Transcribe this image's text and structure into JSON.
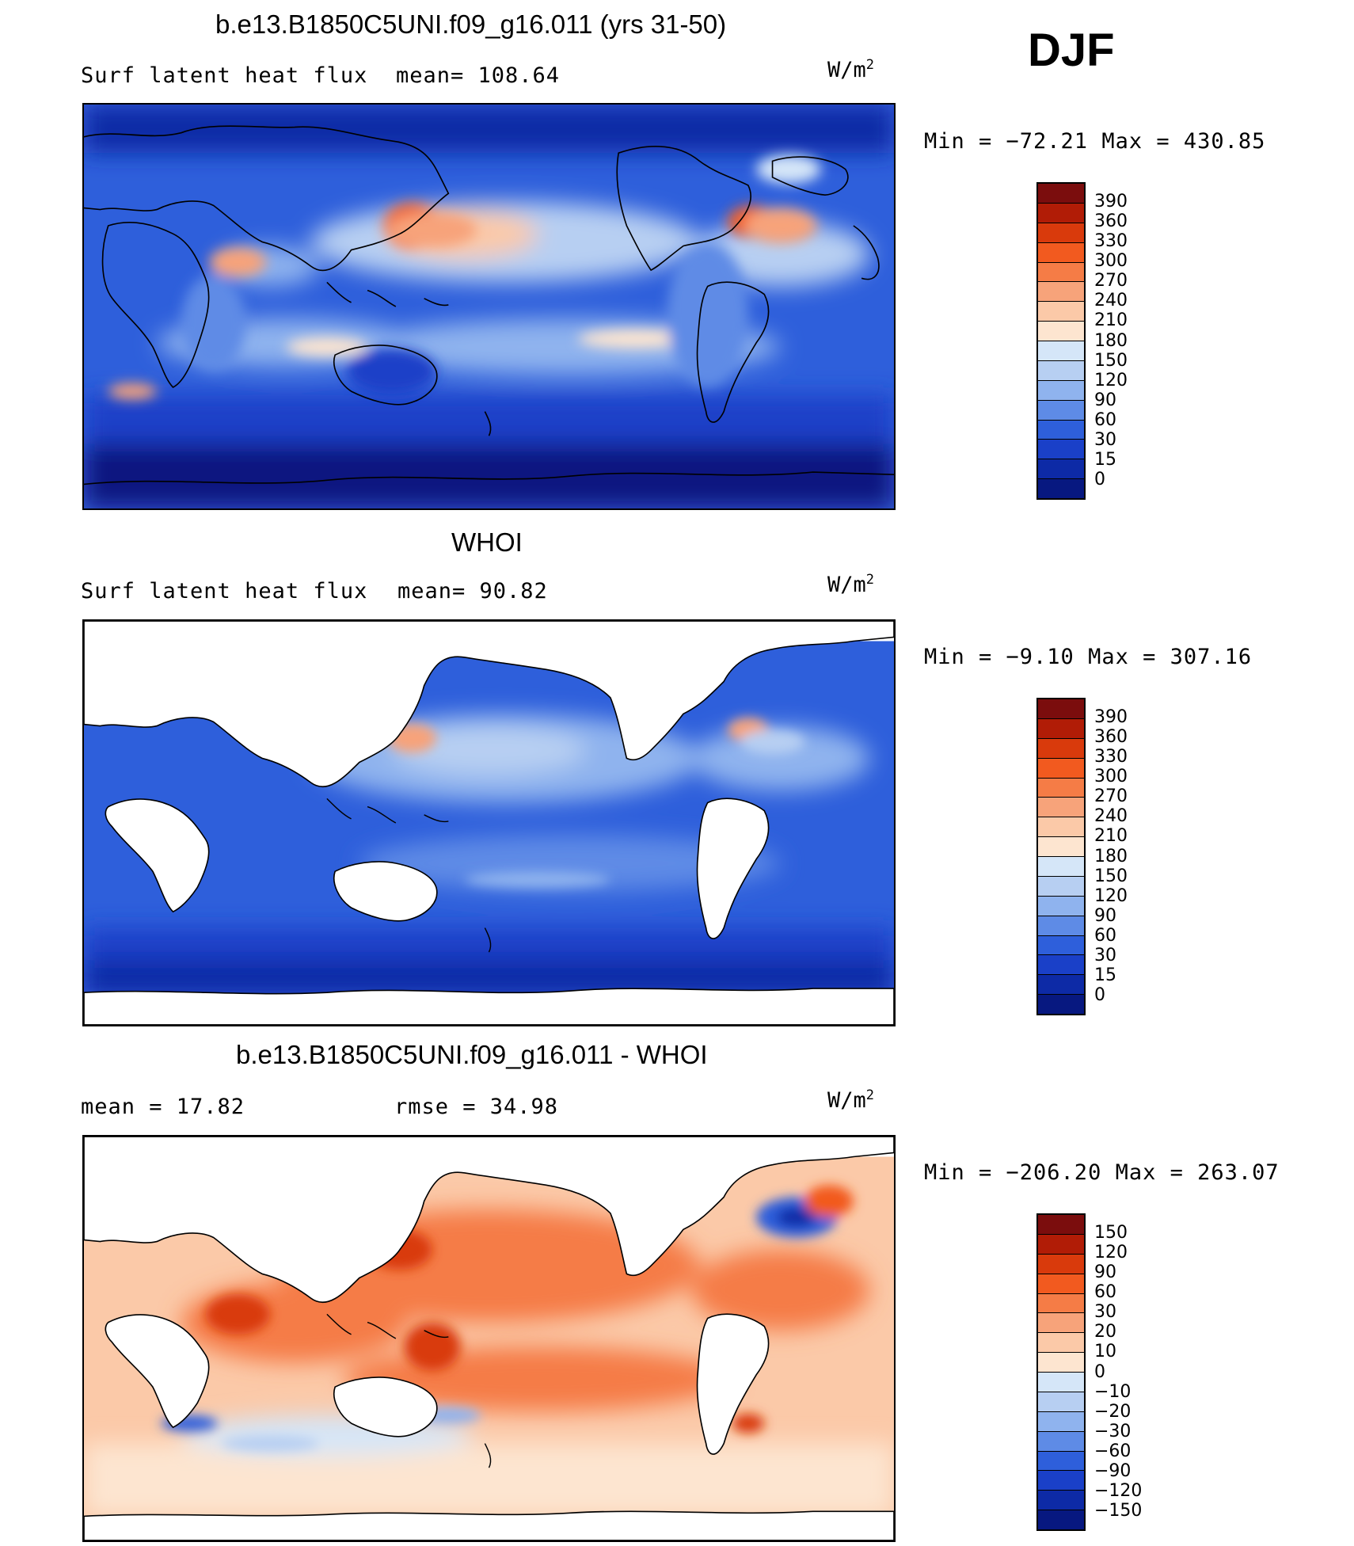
{
  "season": "DJF",
  "panels": [
    {
      "title": "b.e13.B1850C5UNI.f09_g16.011 (yrs 31-50)",
      "left_label": "Surf latent heat flux",
      "mid_label": "mean=  108.64",
      "units_base": "W/m",
      "units_exp": "2",
      "minmax": "Min = −72.21 Max = 430.85",
      "colorbar": {
        "labels": [
          "390",
          "360",
          "330",
          "300",
          "270",
          "240",
          "210",
          "180",
          "150",
          "120",
          "90",
          "60",
          "30",
          "15",
          "0"
        ],
        "colors": [
          "#7b0d0d",
          "#b11c06",
          "#d93a0c",
          "#f25a1f",
          "#f57c46",
          "#f7a37a",
          "#fbc9a8",
          "#fde5d0",
          "#d5e6f8",
          "#b7cff2",
          "#8fb3ee",
          "#5e8be6",
          "#2e5fdb",
          "#1a40c8",
          "#0d2aa6",
          "#071880"
        ]
      }
    },
    {
      "title": "WHOI",
      "left_label": "Surf latent heat flux",
      "mid_label": "mean=   90.82",
      "units_base": "W/m",
      "units_exp": "2",
      "minmax": "Min =   −9.10 Max = 307.16",
      "colorbar": {
        "labels": [
          "390",
          "360",
          "330",
          "300",
          "270",
          "240",
          "210",
          "180",
          "150",
          "120",
          "90",
          "60",
          "30",
          "15",
          "0"
        ],
        "colors": [
          "#7b0d0d",
          "#b11c06",
          "#d93a0c",
          "#f25a1f",
          "#f57c46",
          "#f7a37a",
          "#fbc9a8",
          "#fde5d0",
          "#d5e6f8",
          "#b7cff2",
          "#8fb3ee",
          "#5e8be6",
          "#2e5fdb",
          "#1a40c8",
          "#0d2aa6",
          "#071880"
        ]
      }
    },
    {
      "title": "b.e13.B1850C5UNI.f09_g16.011 - WHOI",
      "left_label": "mean =   17.82",
      "mid_label": "rmse =   34.98",
      "units_base": "W/m",
      "units_exp": "2",
      "minmax": "Min = −206.20 Max = 263.07",
      "colorbar": {
        "labels": [
          "150",
          "120",
          "90",
          "60",
          "30",
          "20",
          "10",
          "0",
          "−10",
          "−20",
          "−30",
          "−60",
          "−90",
          "−120",
          "−150"
        ],
        "colors": [
          "#7b0d0d",
          "#b11c06",
          "#d93a0c",
          "#f25a1f",
          "#f57c46",
          "#f7a37a",
          "#fbc9a8",
          "#fde5d0",
          "#d5e6f8",
          "#b7cff2",
          "#8fb3ee",
          "#5e8be6",
          "#2e5fdb",
          "#1a40c8",
          "#0d2aa6",
          "#071880"
        ]
      }
    }
  ]
}
